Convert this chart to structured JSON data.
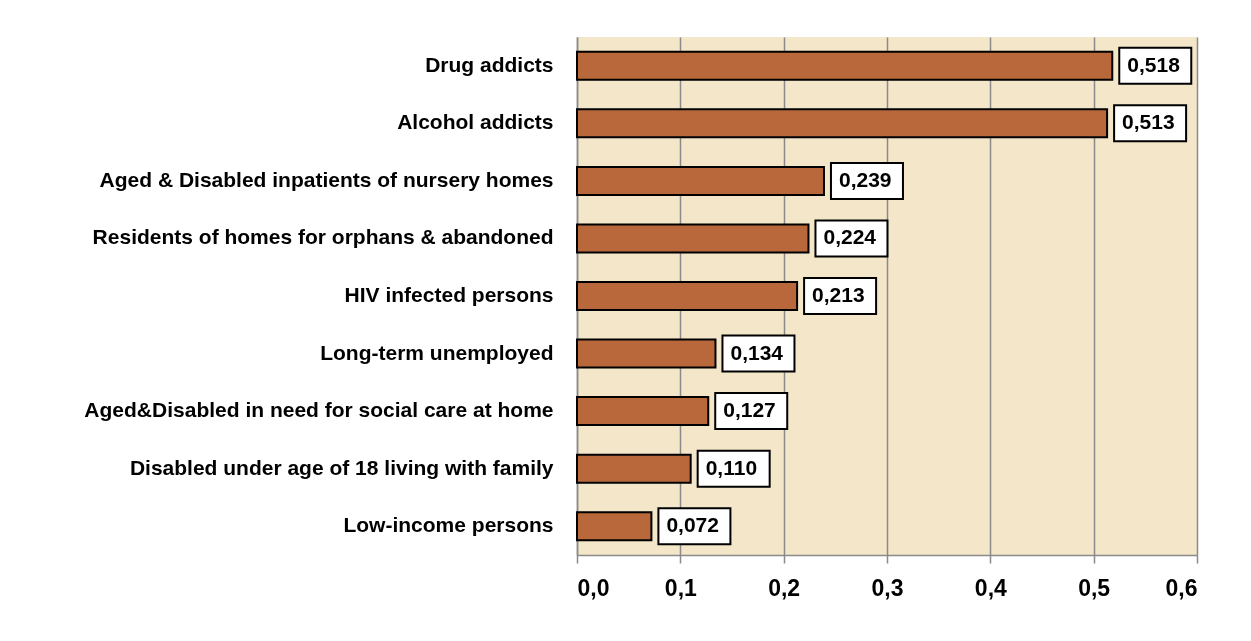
{
  "chart_data": {
    "type": "bar",
    "orientation": "horizontal",
    "categories": [
      "Drug addicts",
      "Alcohol addicts",
      "Aged & Disabled inpatients of nursery homes",
      "Residents of homes for orphans & abandoned",
      "HIV infected persons",
      "Long-term unemployed",
      "Aged&Disabled in need for social care at home",
      "Disabled under age of 18 living with family",
      "Low-income persons"
    ],
    "values": [
      0.518,
      0.513,
      0.239,
      0.224,
      0.213,
      0.134,
      0.127,
      0.11,
      0.072
    ],
    "value_labels": [
      "0,518",
      "0,513",
      "0,239",
      "0,224",
      "0,213",
      "0,134",
      "0,127",
      "0,110",
      "0,072"
    ],
    "color": "#b8683a",
    "xlim": [
      0,
      0.6
    ],
    "xticks": [
      {
        "value": 0,
        "label": "0,0"
      },
      {
        "value": 0.1,
        "label": "0,1"
      },
      {
        "value": 0.2,
        "label": "0,2"
      },
      {
        "value": 0.3,
        "label": "0,3"
      },
      {
        "value": 0.4,
        "label": "0,4"
      },
      {
        "value": 0.5,
        "label": "0,5"
      },
      {
        "value": 0.6,
        "label": "0,6"
      }
    ],
    "grid": "x"
  }
}
